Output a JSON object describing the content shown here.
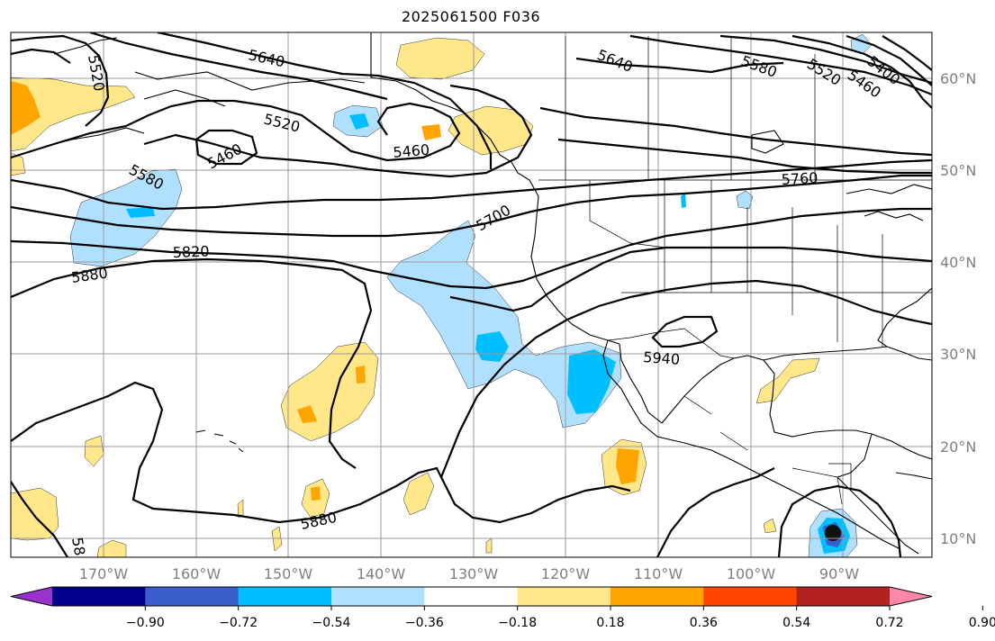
{
  "title": "2025061500 F036",
  "lon_labels": [
    "170°W",
    "160°W",
    "150°W",
    "140°W",
    "130°W",
    "120°W",
    "110°W",
    "100°W",
    "90°W"
  ],
  "lat_labels": [
    "60°N",
    "50°N",
    "40°N",
    "30°N",
    "20°N",
    "10°N"
  ],
  "contour_labels": [
    "5520",
    "5640",
    "5640",
    "5580",
    "5520",
    "5400",
    "5460",
    "5520",
    "5460",
    "5460",
    "5580",
    "5700",
    "5760",
    "5820",
    "5880",
    "5940",
    "5880",
    "58"
  ],
  "colorbar": {
    "ticks": [
      "−0.90",
      "−0.72",
      "−0.54",
      "−0.36",
      "−0.18",
      "0.18",
      "0.36",
      "0.54",
      "0.72",
      "0.90"
    ],
    "colors": [
      "#9a32cd",
      "#00008b",
      "#3a5fcd",
      "#00bfff",
      "#b0e0ff",
      "#ffffff",
      "#ffe78a",
      "#ffa500",
      "#ff4500",
      "#b22222",
      "#ff88aa"
    ]
  },
  "shade_colors": {
    "light_blue": "#b0e0ff",
    "blue": "#00bfff",
    "dark_blue": "#3a5fcd",
    "yellow": "#ffe78a",
    "orange": "#ffa500"
  }
}
